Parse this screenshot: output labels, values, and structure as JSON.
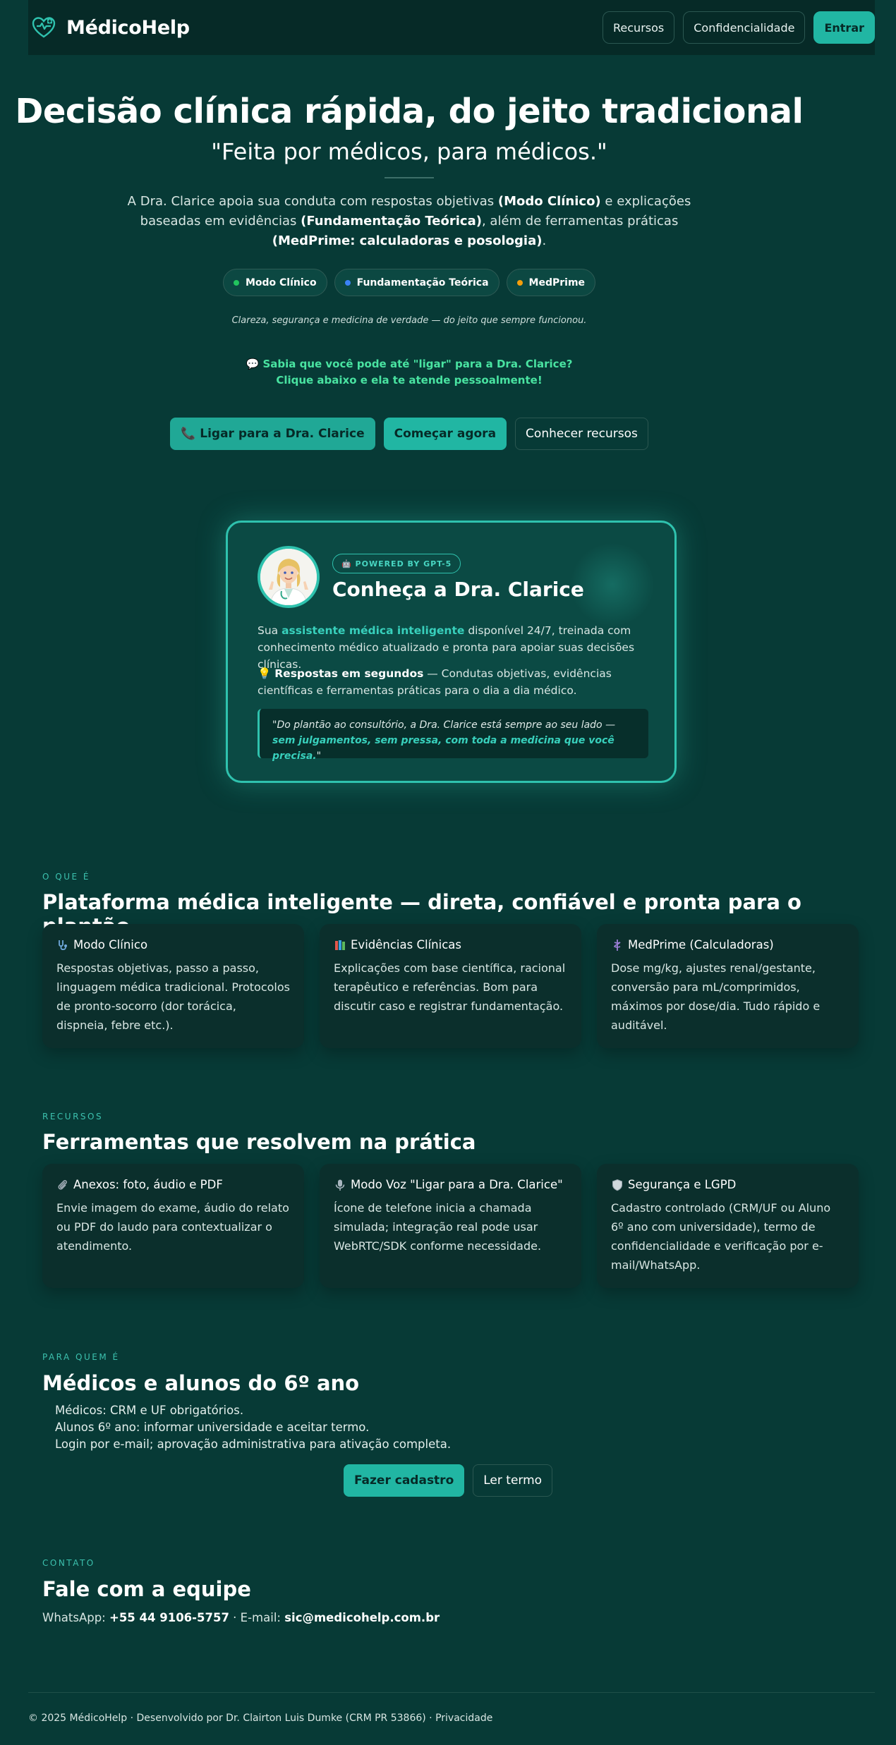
{
  "header": {
    "brand": "MédicoHelp",
    "nav": [
      {
        "label": "Recursos"
      },
      {
        "label": "Confidencialidade"
      },
      {
        "label": "Entrar"
      }
    ]
  },
  "hero": {
    "title": "Decisão clínica rápida, do jeito tradicional",
    "subtitle": "\"Feita por médicos, para médicos.\"",
    "desc": {
      "t1": "A Dra. Clarice apoia sua conduta com respostas objetivas ",
      "b1": "(Modo Clínico)",
      "t2": " e explicações baseadas em evidências ",
      "b2": "(Fundamentação Teórica)",
      "t3": ", além de ferramentas práticas ",
      "b3": "(MedPrime: calculadoras e posologia)",
      "t4": "."
    },
    "pills": [
      {
        "label": "Modo Clínico",
        "color": "#22c55e"
      },
      {
        "label": "Fundamentação Teórica",
        "color": "#3b82f6"
      },
      {
        "label": "MedPrime",
        "color": "#f59e0b"
      }
    ],
    "tagline": "Clareza, segurança e medicina de verdade — do jeito que sempre funcionou.",
    "call_hint_1": "💬 Sabia que você pode até \"ligar\" para a Dra. Clarice?",
    "call_hint_2": "Clique abaixo e ela te atende pessoalmente!",
    "ctas": {
      "call": "📞 Ligar para a Dra. Clarice",
      "start": "Começar agora",
      "features": "Conhecer recursos"
    }
  },
  "clarice": {
    "badge": "🤖 POWERED BY GPT-5",
    "title": "Conheça a Dra. Clarice",
    "p1": {
      "t1": "Sua ",
      "hl": "assistente médica inteligente",
      "t2": " disponível 24/7, treinada com conhecimento médico atualizado e pronta para apoiar suas decisões clínicas."
    },
    "p2": {
      "icon": "💡",
      "b": "Respostas em segundos",
      "t": " — Condutas objetivas, evidências científicas e ferramentas práticas para o dia a dia médico."
    },
    "quote": {
      "t1": "\"Do plantão ao consultório, a Dra. Clarice está sempre ao seu lado — ",
      "hl": "sem julgamentos, sem pressa, com toda a medicina que você precisa.",
      "t2": "\""
    }
  },
  "what": {
    "eyebrow": "O QUE É",
    "title": "Plataforma médica inteligente — direta, confiável e pronta para o plantão",
    "cards": [
      {
        "title": "Modo Clínico",
        "body": "Respostas objetivas, passo a passo, linguagem médica tradicional. Protocolos de pronto-socorro (dor torácica, dispneia, febre etc.)."
      },
      {
        "title": "Evidências Clínicas",
        "body": "Explicações com base científica, racional terapêutico e referências. Bom para discutir caso e registrar fundamentação."
      },
      {
        "title": "MedPrime (Calculadoras)",
        "body": "Dose mg/kg, ajustes renal/gestante, conversão para mL/comprimidos, máximos por dose/dia. Tudo rápido e auditável."
      }
    ]
  },
  "resources": {
    "eyebrow": "RECURSOS",
    "title": "Ferramentas que resolvem na prática",
    "cards": [
      {
        "title": "Anexos: foto, áudio e PDF",
        "body": "Envie imagem do exame, áudio do relato ou PDF do laudo para contextualizar o atendimento."
      },
      {
        "title": "Modo Voz \"Ligar para a Dra. Clarice\"",
        "body": "Ícone de telefone inicia a chamada simulada; integração real pode usar WebRTC/SDK conforme necessidade."
      },
      {
        "title": "Segurança e LGPD",
        "body": "Cadastro controlado (CRM/UF ou Aluno 6º ano com universidade), termo de confidencialidade e verificação por e-mail/WhatsApp."
      }
    ]
  },
  "audience": {
    "eyebrow": "PARA QUEM É",
    "title": "Médicos e alunos do 6º ano",
    "items": [
      "Médicos: CRM e UF obrigatórios.",
      "Alunos 6º ano: informar universidade e aceitar termo.",
      "Login por e-mail; aprovação administrativa para ativação completa."
    ],
    "signup": "Fazer cadastro",
    "terms": "Ler termo"
  },
  "contact": {
    "eyebrow": "CONTATO",
    "title": "Fale com a equipe",
    "wa_label": "WhatsApp: ",
    "wa": "+55 44 9106-5757",
    "sep": " · E-mail: ",
    "email": "sic@medicohelp.com.br"
  },
  "footer": {
    "text": "© 2025 MédicoHelp · Desenvolvido por Dr. Clairton Luis Dumke (CRM PR 53866) · Privacidade"
  }
}
